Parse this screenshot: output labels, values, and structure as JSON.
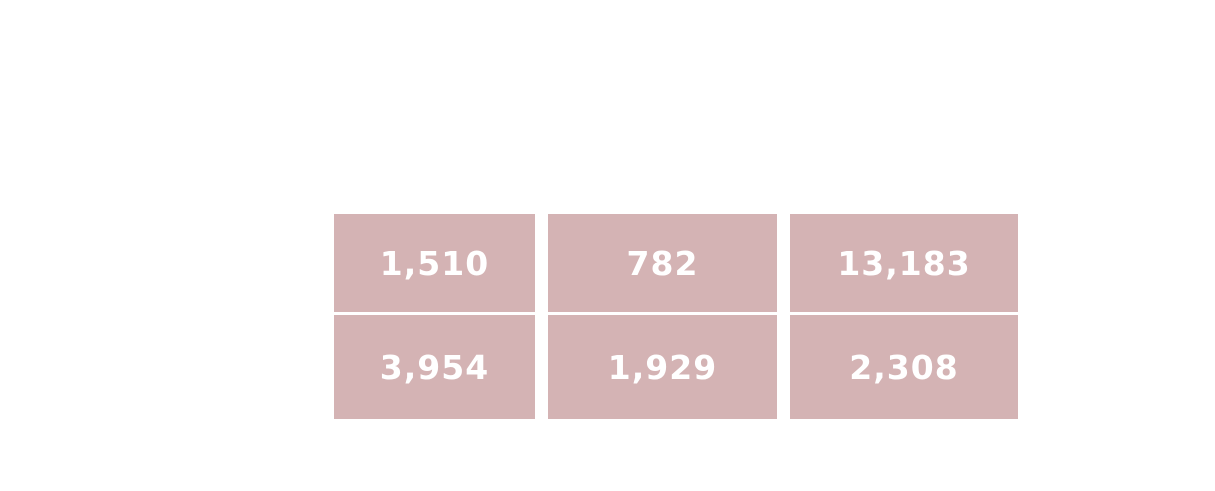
{
  "chart_data": {
    "type": "heatmap",
    "title": "",
    "xlabel": "",
    "ylabel": "",
    "columns": [
      "",
      "",
      ""
    ],
    "rows": [
      {
        "values": [
          1510,
          782,
          13183
        ],
        "labels": [
          "1,510",
          "782",
          "13,183"
        ]
      },
      {
        "values": [
          3954,
          1929,
          2308
        ],
        "labels": [
          "3,954",
          "1,929",
          "2,308"
        ]
      }
    ],
    "cell_color": "#d4b3b4",
    "label_color": "#ffffff",
    "background_color": "#ffffff"
  }
}
